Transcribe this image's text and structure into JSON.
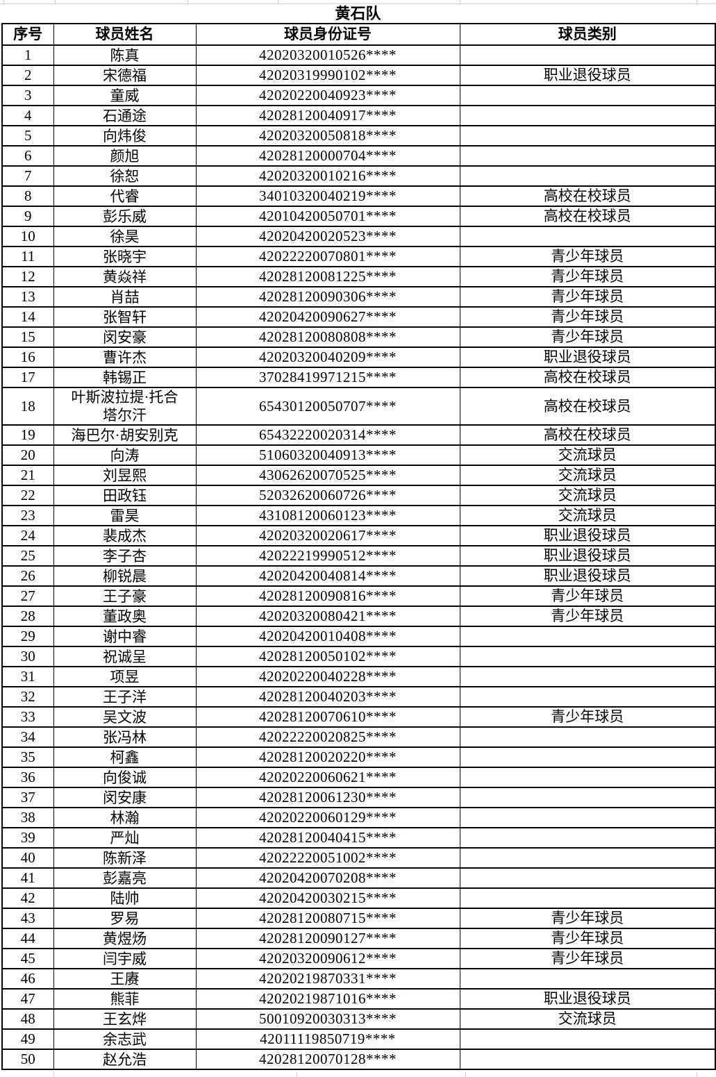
{
  "title": "黄石队",
  "table": {
    "headers": [
      "序号",
      "球员姓名",
      "球员身份证号",
      "球员类别"
    ],
    "rows": [
      {
        "no": "1",
        "name": "陈真",
        "id": "42020320010526****",
        "category": ""
      },
      {
        "no": "2",
        "name": "宋德福",
        "id": "42020319990102****",
        "category": "职业退役球员"
      },
      {
        "no": "3",
        "name": "童威",
        "id": "42020220040923****",
        "category": ""
      },
      {
        "no": "4",
        "name": "石通途",
        "id": "42028120040917****",
        "category": ""
      },
      {
        "no": "5",
        "name": "向炜俊",
        "id": "42020320050818****",
        "category": ""
      },
      {
        "no": "6",
        "name": "颜旭",
        "id": "42028120000704****",
        "category": ""
      },
      {
        "no": "7",
        "name": "徐恕",
        "id": "42020320010216****",
        "category": ""
      },
      {
        "no": "8",
        "name": "代睿",
        "id": "34010320040219****",
        "category": "高校在校球员"
      },
      {
        "no": "9",
        "name": "彭乐威",
        "id": "42010420050701****",
        "category": "高校在校球员"
      },
      {
        "no": "10",
        "name": "徐昊",
        "id": "42020420020523****",
        "category": ""
      },
      {
        "no": "11",
        "name": "张晓宇",
        "id": "42022220070801****",
        "category": "青少年球员"
      },
      {
        "no": "12",
        "name": "黄焱祥",
        "id": "42028120081225****",
        "category": "青少年球员"
      },
      {
        "no": "13",
        "name": "肖喆",
        "id": "42028120090306****",
        "category": "青少年球员"
      },
      {
        "no": "14",
        "name": "张智轩",
        "id": "42020420090627****",
        "category": "青少年球员"
      },
      {
        "no": "15",
        "name": "闵安豪",
        "id": "42028120080808****",
        "category": "青少年球员"
      },
      {
        "no": "16",
        "name": "曹许杰",
        "id": "42020320040209****",
        "category": "职业退役球员"
      },
      {
        "no": "17",
        "name": "韩锡正",
        "id": "37028419971215****",
        "category": "高校在校球员"
      },
      {
        "no": "18",
        "name": "叶斯波拉提·托合塔尔汗",
        "id": "65430120050707****",
        "category": "高校在校球员"
      },
      {
        "no": "19",
        "name": "海巴尔·胡安别克",
        "id": "65432220020314****",
        "category": "高校在校球员"
      },
      {
        "no": "20",
        "name": "向涛",
        "id": "51060320040913****",
        "category": "交流球员"
      },
      {
        "no": "21",
        "name": "刘昱熙",
        "id": "43062620070525****",
        "category": "交流球员"
      },
      {
        "no": "22",
        "name": "田政钰",
        "id": "52032620060726****",
        "category": "交流球员"
      },
      {
        "no": "23",
        "name": "雷昊",
        "id": "43108120060123****",
        "category": "交流球员"
      },
      {
        "no": "24",
        "name": "裴成杰",
        "id": "42020320020617****",
        "category": "职业退役球员"
      },
      {
        "no": "25",
        "name": "李子杏",
        "id": "42022219990512****",
        "category": "职业退役球员"
      },
      {
        "no": "26",
        "name": "柳锐晨",
        "id": "42020420040814****",
        "category": "职业退役球员"
      },
      {
        "no": "27",
        "name": "王子豪",
        "id": "42028120090816****",
        "category": "青少年球员"
      },
      {
        "no": "28",
        "name": "董政奥",
        "id": "42020320080421****",
        "category": "青少年球员"
      },
      {
        "no": "29",
        "name": "谢中睿",
        "id": "42020420010408****",
        "category": ""
      },
      {
        "no": "30",
        "name": "祝诚呈",
        "id": "42028120050102****",
        "category": ""
      },
      {
        "no": "31",
        "name": "项昱",
        "id": "42020220040228****",
        "category": ""
      },
      {
        "no": "32",
        "name": "王子洋",
        "id": "42028120040203****",
        "category": ""
      },
      {
        "no": "33",
        "name": "吴文波",
        "id": "42028120070610****",
        "category": "青少年球员"
      },
      {
        "no": "34",
        "name": "张冯林",
        "id": "42022220020825****",
        "category": ""
      },
      {
        "no": "35",
        "name": "柯鑫",
        "id": "42028120020220****",
        "category": ""
      },
      {
        "no": "36",
        "name": "向俊诚",
        "id": "42020220060621****",
        "category": ""
      },
      {
        "no": "37",
        "name": "闵安康",
        "id": "42028120061230****",
        "category": ""
      },
      {
        "no": "38",
        "name": "林瀚",
        "id": "42020220060129****",
        "category": ""
      },
      {
        "no": "39",
        "name": "严灿",
        "id": "42028120040415****",
        "category": ""
      },
      {
        "no": "40",
        "name": "陈新泽",
        "id": "42022220051002****",
        "category": ""
      },
      {
        "no": "41",
        "name": "彭嘉亮",
        "id": "42020420070208****",
        "category": ""
      },
      {
        "no": "42",
        "name": "陆帅",
        "id": "42020420030215****",
        "category": ""
      },
      {
        "no": "43",
        "name": "罗易",
        "id": "42028120080715****",
        "category": "青少年球员"
      },
      {
        "no": "44",
        "name": "黄煜炀",
        "id": "42028120090127****",
        "category": "青少年球员"
      },
      {
        "no": "45",
        "name": "闫宇威",
        "id": "42020320090612****",
        "category": "青少年球员"
      },
      {
        "no": "46",
        "name": "王赓",
        "id": "42020219870331****",
        "category": ""
      },
      {
        "no": "47",
        "name": "熊菲",
        "id": "42020219871016****",
        "category": "职业退役球员"
      },
      {
        "no": "48",
        "name": "王玄烨",
        "id": "50010920030313****",
        "category": "交流球员"
      },
      {
        "no": "49",
        "name": "余志武",
        "id": "42011119850719****",
        "category": ""
      },
      {
        "no": "50",
        "name": "赵允浩",
        "id": "42028120070128****",
        "category": ""
      }
    ]
  },
  "colors": {
    "border": "#000000",
    "text": "#000000",
    "background": "#ffffff",
    "faint_gridline": "#cfcfcf"
  }
}
